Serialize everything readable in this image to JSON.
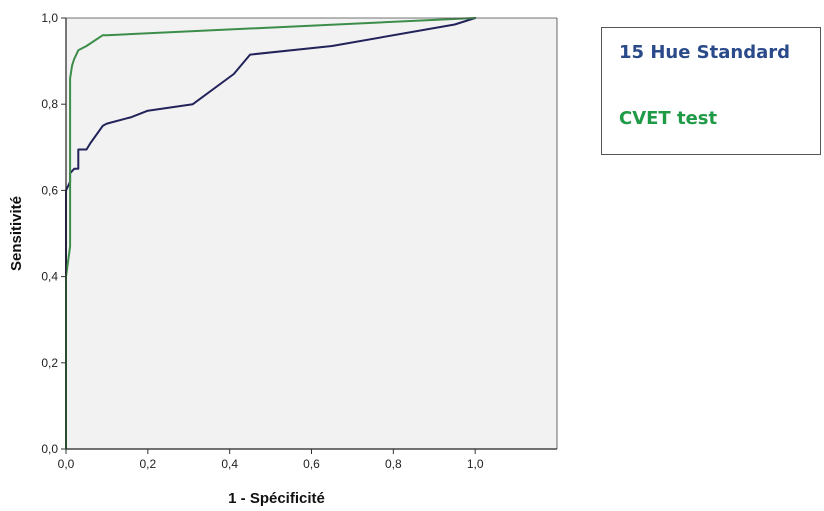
{
  "chart_data": {
    "type": "line",
    "title": "",
    "xlabel": "1 - Spécificité",
    "ylabel": "Sensitivité",
    "xlim": [
      0,
      1.2
    ],
    "ylim": [
      0,
      1.0
    ],
    "grid": false,
    "plot_background": "#f2f2f2",
    "x_ticks": [
      "0,0",
      "0,2",
      "0,4",
      "0,6",
      "0,8",
      "1,0"
    ],
    "y_ticks": [
      "0,0",
      "0,2",
      "0,4",
      "0,6",
      "0,8",
      "1,0"
    ],
    "legend_position": "right",
    "series": [
      {
        "name": "15 Hue Standard",
        "legend_color": "#2b4a8a",
        "line_color": "#22235a",
        "x": [
          0,
          0,
          0,
          0,
          0.01,
          0.01,
          0.02,
          0.03,
          0.03,
          0.05,
          0.06,
          0.09,
          0.1,
          0.16,
          0.2,
          0.31,
          0.41,
          0.45,
          0.65,
          0.95,
          1.0
        ],
        "y": [
          0,
          0.39,
          0.53,
          0.6,
          0.62,
          0.64,
          0.65,
          0.65,
          0.695,
          0.695,
          0.71,
          0.75,
          0.755,
          0.77,
          0.785,
          0.8,
          0.87,
          0.915,
          0.935,
          0.985,
          1.0
        ]
      },
      {
        "name": "CVET test",
        "legend_color": "#1f9a46",
        "line_color": "#3d8d4a",
        "x": [
          0,
          0,
          0.01,
          0.01,
          0.015,
          0.02,
          0.03,
          0.05,
          0.09,
          0.1,
          1.0
        ],
        "y": [
          0,
          0.4,
          0.47,
          0.86,
          0.89,
          0.905,
          0.925,
          0.935,
          0.96,
          0.96,
          1.0
        ]
      }
    ]
  }
}
